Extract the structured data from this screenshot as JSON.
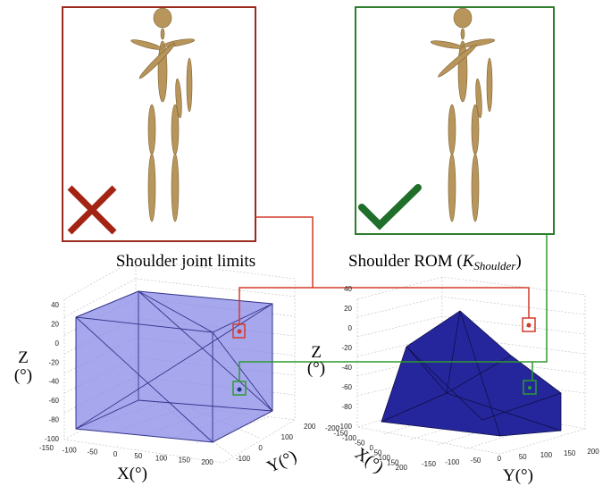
{
  "left_panel": {
    "caption": "Shoulder joint limits",
    "plot": {
      "z_label": "Z",
      "z_unit": "(°)",
      "x_label": "X(°)",
      "y_label": "Y(°)",
      "z_ticks": [
        40,
        20,
        0,
        -20,
        -40,
        -60,
        -80,
        -100
      ],
      "x_ticks": [
        -150,
        -100,
        -50,
        0,
        50,
        100,
        150,
        200
      ],
      "y_ticks": [
        -100,
        0,
        100,
        200
      ]
    }
  },
  "right_panel": {
    "caption": "Shoulder ROM (",
    "caption_symbol": "K",
    "caption_subscript": "Shoulder",
    "caption_end": ")",
    "plot": {
      "z_label": "Z",
      "z_unit": "(°)",
      "x_label": "X(°)",
      "y_label": "Y(°)",
      "z_ticks": [
        40,
        20,
        0,
        -20,
        -40,
        -60,
        -80,
        -100
      ],
      "x_ticks": [
        -200,
        -150,
        -100,
        -50,
        0,
        50,
        100,
        150,
        200
      ],
      "y_ticks": [
        -150,
        -100,
        -50,
        0,
        50,
        100,
        150,
        200
      ]
    }
  }
}
